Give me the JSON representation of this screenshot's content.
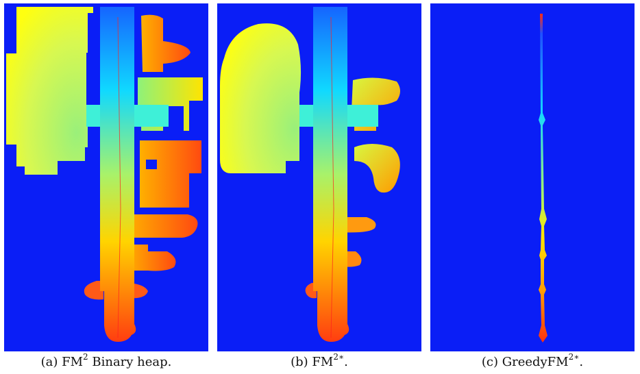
{
  "figure": {
    "panels": [
      {
        "id": "a",
        "caption_prefix": "(a) FM",
        "caption_sup": "2",
        "caption_suffix": " Binary heap."
      },
      {
        "id": "b",
        "caption_prefix": "(b) FM",
        "caption_sup": "2∗",
        "caption_suffix": "."
      },
      {
        "id": "c",
        "caption_prefix": "(c) GreedyFM",
        "caption_sup": "2∗",
        "caption_suffix": "."
      }
    ],
    "background_color": "#0a1ef6",
    "colormap": [
      "#00ffff",
      "#ffff00",
      "#ff3300"
    ]
  }
}
